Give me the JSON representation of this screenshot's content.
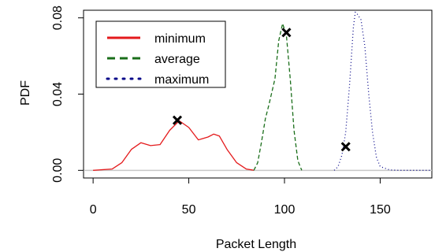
{
  "chart_data": {
    "type": "line",
    "xlabel": "Packet Length",
    "ylabel": "PDF",
    "xlim": [
      -5,
      177
    ],
    "ylim": [
      -0.004,
      0.084
    ],
    "x_ticks": [
      0,
      50,
      100,
      150
    ],
    "x_tick_labels": [
      "0",
      "50",
      "100",
      "150"
    ],
    "y_ticks": [
      0.0,
      0.04,
      0.08
    ],
    "y_tick_labels": [
      "0.00",
      "0.04",
      "0.08"
    ],
    "legend_placement": "top-left",
    "grid": false,
    "series": [
      {
        "name": "minimum",
        "color": "#e41a1c",
        "dash": "solid",
        "x": [
          0,
          10,
          15,
          20,
          25,
          30,
          35,
          40,
          45,
          50,
          55,
          60,
          63,
          66,
          70,
          75,
          80,
          83,
          84
        ],
        "y": [
          0.0,
          0.0007,
          0.004,
          0.011,
          0.0145,
          0.013,
          0.0135,
          0.021,
          0.026,
          0.0225,
          0.016,
          0.0175,
          0.019,
          0.018,
          0.011,
          0.004,
          0.0007,
          0.0002,
          0.0
        ]
      },
      {
        "name": "average",
        "color": "#1a6e1a",
        "dash": "dashed",
        "x": [
          84,
          86,
          88,
          90,
          92,
          95,
          97,
          99,
          101,
          103,
          105,
          107,
          109
        ],
        "y": [
          0.0,
          0.004,
          0.015,
          0.027,
          0.035,
          0.048,
          0.068,
          0.077,
          0.071,
          0.048,
          0.021,
          0.005,
          0.0
        ]
      },
      {
        "name": "maximum",
        "color": "#0a0a8a",
        "dash": "dotted",
        "x": [
          126,
          128,
          130,
          132,
          134,
          136,
          137,
          138,
          140,
          142,
          144,
          146,
          148,
          150,
          155,
          160,
          170,
          177
        ],
        "y": [
          0.0,
          0.002,
          0.008,
          0.02,
          0.045,
          0.075,
          0.083,
          0.082,
          0.079,
          0.065,
          0.04,
          0.02,
          0.007,
          0.002,
          0.0002,
          0.0,
          0.0,
          0.0
        ]
      }
    ],
    "markers": [
      {
        "x": 44,
        "y": 0.0263
      },
      {
        "x": 101,
        "y": 0.0723
      },
      {
        "x": 132,
        "y": 0.0124
      }
    ],
    "baseline": {
      "y": 0.0,
      "color": "#c8c8c8"
    }
  }
}
